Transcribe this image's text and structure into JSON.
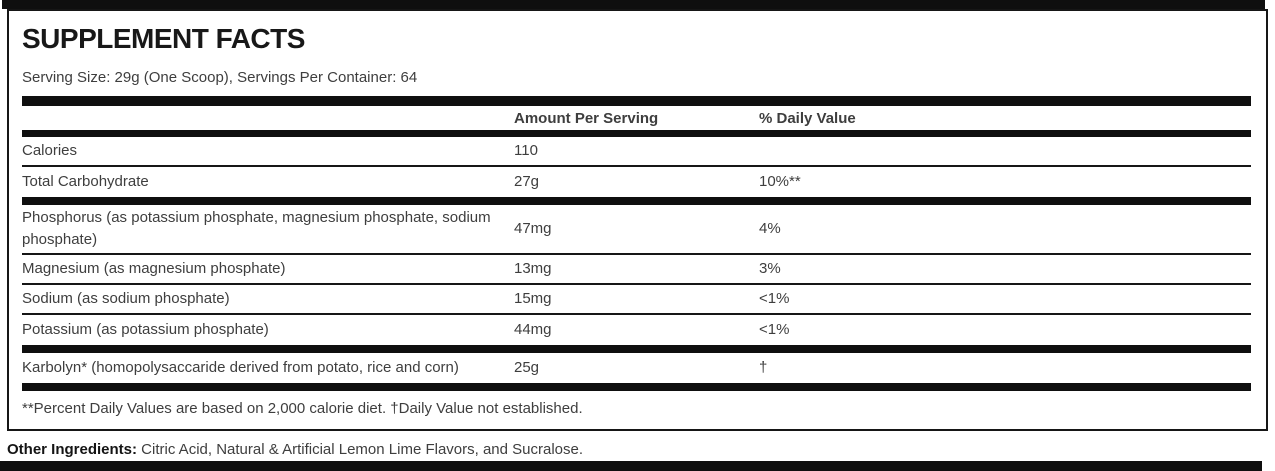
{
  "label": {
    "title": "SUPPLEMENT FACTS",
    "serving_info": "Serving Size: 29g (One Scoop), Servings Per Container: 64"
  },
  "table": {
    "headers": {
      "amount": "Amount Per Serving",
      "daily_value": "% Daily Value"
    },
    "rows": [
      {
        "name": "Calories",
        "amount": "110",
        "dv": "",
        "thick_bar_after": false
      },
      {
        "name": "Total Carbohydrate",
        "amount": "27g",
        "dv": "10%**",
        "thick_bar_after": true
      },
      {
        "name": "Phosphorus (as potassium phosphate, magnesium phosphate, sodium phosphate)",
        "amount": "47mg",
        "dv": "4%",
        "thick_bar_after": false
      },
      {
        "name": "Magnesium (as magnesium phosphate)",
        "amount": "13mg",
        "dv": "3%",
        "thick_bar_after": false
      },
      {
        "name": "Sodium (as sodium phosphate)",
        "amount": "15mg",
        "dv": "<1%",
        "thick_bar_after": false
      },
      {
        "name": "Potassium (as potassium phosphate)",
        "amount": "44mg",
        "dv": "<1%",
        "thick_bar_after": true
      },
      {
        "name": "Karbolyn* (homopolysaccaride derived from potato, rice and corn)",
        "amount": "25g",
        "dv": "†",
        "thick_bar_after": true
      }
    ],
    "footnote": "**Percent Daily Values are based on 2,000 calorie diet. †Daily Value not established."
  },
  "other_ingredients": {
    "label": "Other Ingredients:",
    "text": " Citric Acid, Natural & Artificial Lemon Lime Flavors, and Sucralose."
  },
  "colors": {
    "bar_black": "#0f0f0f",
    "text_gray": "#3e3e3e",
    "title_black": "#181818"
  }
}
